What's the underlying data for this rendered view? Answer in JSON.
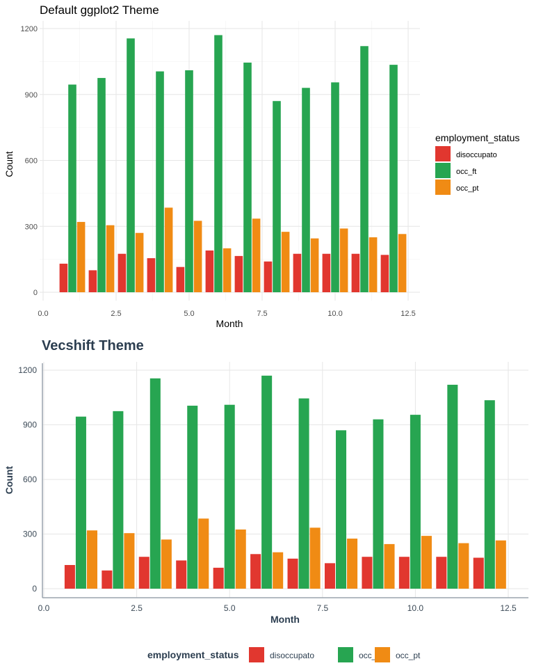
{
  "colors": {
    "disoccupato": "#E1372F",
    "occ_ft": "#27A551",
    "occ_pt": "#F08B14",
    "vec_text": "#2C3E50",
    "vec_axis": "#9AA3AD",
    "grid_major": "#E6E6E6",
    "grid_minor": "#F2F2F2"
  },
  "chart_data": [
    {
      "type": "bar",
      "title": "Default ggplot2 Theme",
      "xlabel": "Month",
      "ylabel": "Count",
      "x": [
        1,
        2,
        3,
        4,
        5,
        6,
        7,
        8,
        9,
        10,
        11,
        12
      ],
      "xlim": [
        0,
        12.5
      ],
      "ylim": [
        0,
        1200
      ],
      "x_ticks": [
        "0.0",
        "2.5",
        "5.0",
        "7.5",
        "10.0",
        "12.5"
      ],
      "y_ticks": [
        "0",
        "300",
        "600",
        "900",
        "1200"
      ],
      "legend": {
        "title": "employment_status",
        "placement": "right"
      },
      "grid": true,
      "series": [
        {
          "name": "disoccupato",
          "values": [
            130,
            100,
            175,
            155,
            115,
            190,
            165,
            140,
            175,
            175,
            175,
            170
          ]
        },
        {
          "name": "occ_ft",
          "values": [
            945,
            975,
            1155,
            1005,
            1010,
            1170,
            1045,
            870,
            930,
            955,
            1120,
            1035
          ]
        },
        {
          "name": "occ_pt",
          "values": [
            320,
            305,
            270,
            385,
            325,
            200,
            335,
            275,
            245,
            290,
            250,
            265
          ]
        }
      ]
    },
    {
      "type": "bar",
      "title": "Vecshift Theme",
      "xlabel": "Month",
      "ylabel": "Count",
      "x": [
        1,
        2,
        3,
        4,
        5,
        6,
        7,
        8,
        9,
        10,
        11,
        12
      ],
      "xlim": [
        0,
        12.5
      ],
      "ylim": [
        0,
        1200
      ],
      "x_ticks": [
        "0.0",
        "2.5",
        "5.0",
        "7.5",
        "10.0",
        "12.5"
      ],
      "y_ticks": [
        "0",
        "300",
        "600",
        "900",
        "1200"
      ],
      "legend": {
        "title": "employment_status",
        "placement": "bottom"
      },
      "grid": true,
      "series": [
        {
          "name": "disoccupato",
          "values": [
            130,
            100,
            175,
            155,
            115,
            190,
            165,
            140,
            175,
            175,
            175,
            170
          ]
        },
        {
          "name": "occ_ft",
          "values": [
            945,
            975,
            1155,
            1005,
            1010,
            1170,
            1045,
            870,
            930,
            955,
            1120,
            1035
          ]
        },
        {
          "name": "occ_pt",
          "values": [
            320,
            305,
            270,
            385,
            325,
            200,
            335,
            275,
            245,
            290,
            250,
            265
          ]
        }
      ]
    }
  ]
}
